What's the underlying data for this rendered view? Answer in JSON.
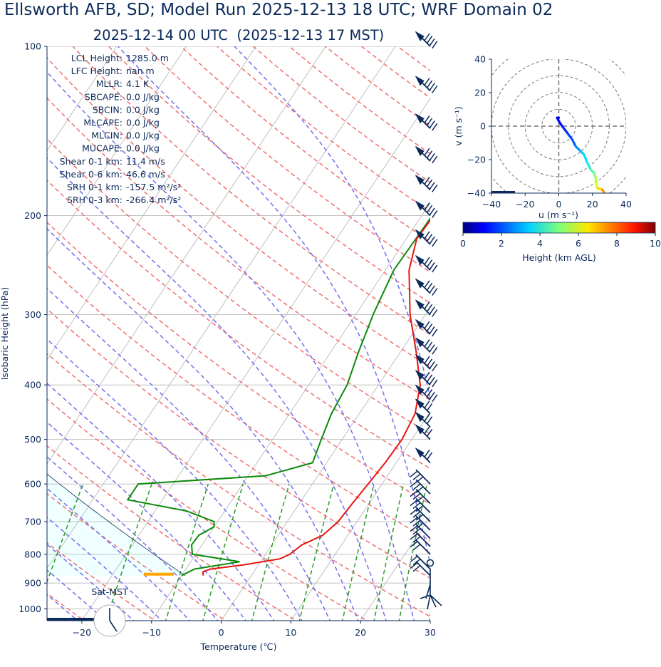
{
  "header": {
    "title": "Ellsworth AFB, SD; Model Run 2025-12-13 18 UTC; WRF Domain 02",
    "subtitle": "2025-12-14 00 UTC  (2025-12-13 17 MST)"
  },
  "indices": [
    {
      "label": "LCL Height:",
      "value": "1285.0 m"
    },
    {
      "label": "LFC Height:",
      "value": "nan m"
    },
    {
      "label": "MLLR:",
      "value": "4.1 K"
    },
    {
      "label": "SBCAPE:",
      "value": "0.0 J/kg"
    },
    {
      "label": "SBCIN:",
      "value": "0.0 J/kg"
    },
    {
      "label": "MLCAPE:",
      "value": "0.0 J/kg"
    },
    {
      "label": "MLCIN:",
      "value": "0.0 J/kg"
    },
    {
      "label": "MUCAPE:",
      "value": "0.0 J/kg"
    },
    {
      "label": "Shear 0-1 km:",
      "value": "11.4 m/s"
    },
    {
      "label": "Shear 0-6 km:",
      "value": "46.6 m/s"
    },
    {
      "label": "SRH 0-1 km:",
      "value": "-157.5 m²/s²"
    },
    {
      "label": "SRH 0-3 km:",
      "value": "-266.4 m²/s²"
    }
  ],
  "clock_label": "Sat-MST",
  "colors": {
    "temperature": "#e8150f",
    "dewpoint": "#0a8a0a",
    "dry_adiabat": "#f07070",
    "moist_adiabat": "#7070f0",
    "mixing_ratio": "#2a9a2a",
    "isotherm": "#b8b8b8",
    "cape_fill": "#f0ffff",
    "barb": "#0b2a5a",
    "lcl_marker": "#ffa500"
  },
  "chart_data": [
    {
      "type": "line",
      "name": "skew-t",
      "xlabel": "Temperature (℃)",
      "ylabel": "Isobaric Height (hPa)",
      "xlim": [
        -25,
        30
      ],
      "ylim": [
        1050,
        100
      ],
      "y_log_scale": true,
      "skew": true,
      "x_ticks": [
        -20,
        -10,
        0,
        10,
        20,
        30
      ],
      "y_ticks": [
        100,
        200,
        300,
        400,
        500,
        600,
        700,
        800,
        900,
        1000
      ],
      "series": [
        {
          "key": "temperature",
          "points": [
            [
              873,
              -6.9
            ],
            [
              860,
              -7.3
            ],
            [
              850,
              -6.5
            ],
            [
              835,
              -2.0
            ],
            [
              815,
              2.5
            ],
            [
              800,
              3.5
            ],
            [
              770,
              4.3
            ],
            [
              740,
              6.4
            ],
            [
              700,
              7.3
            ],
            [
              650,
              7.6
            ],
            [
              600,
              8.0
            ],
            [
              550,
              8.4
            ],
            [
              500,
              8.6
            ],
            [
              450,
              8.0
            ],
            [
              400,
              6.0
            ],
            [
              350,
              2.3
            ],
            [
              300,
              -2.2
            ],
            [
              250,
              -6.6
            ],
            [
              220,
              -8.5
            ],
            [
              190,
              -8.2
            ],
            [
              170,
              -4.0
            ],
            [
              140,
              2.5
            ],
            [
              100,
              12.5
            ]
          ]
        },
        {
          "key": "dewpoint",
          "points": [
            [
              873,
              -10.0
            ],
            [
              850,
              -8.8
            ],
            [
              825,
              -3.0
            ],
            [
              800,
              -10.5
            ],
            [
              770,
              -11.5
            ],
            [
              740,
              -11.4
            ],
            [
              715,
              -10.0
            ],
            [
              700,
              -10.5
            ],
            [
              670,
              -15.5
            ],
            [
              640,
              -25.0
            ],
            [
              600,
              -25.0
            ],
            [
              580,
              -7.5
            ],
            [
              550,
              -2.0
            ],
            [
              500,
              -3.0
            ],
            [
              450,
              -4.0
            ],
            [
              400,
              -4.5
            ],
            [
              350,
              -6.0
            ],
            [
              300,
              -7.5
            ],
            [
              250,
              -8.8
            ],
            [
              200,
              -8.5
            ],
            [
              150,
              -7.5
            ],
            [
              125,
              -7.0
            ],
            [
              100,
              -3.0
            ]
          ]
        }
      ],
      "lcl_hpa": 868,
      "wind_barbs_hpa": [
        100,
        120,
        140,
        160,
        180,
        200,
        225,
        250,
        275,
        300,
        325,
        350,
        375,
        400,
        425,
        450,
        475,
        500,
        550,
        600,
        625,
        650,
        675,
        700,
        725,
        750,
        775,
        800,
        850,
        873
      ],
      "legend": "none"
    },
    {
      "type": "line",
      "name": "hodograph",
      "xlabel": "u (m s⁻¹)",
      "ylabel": "v (m s⁻¹)",
      "xlim": [
        -40,
        40
      ],
      "ylim": [
        -40,
        40
      ],
      "x_ticks": [
        -40,
        -20,
        0,
        20,
        40
      ],
      "y_ticks": [
        -40,
        -20,
        0,
        20,
        40
      ],
      "points": [
        [
          0,
          5
        ],
        [
          -1,
          5
        ],
        [
          0,
          3
        ],
        [
          2,
          0
        ],
        [
          5,
          -4
        ],
        [
          8,
          -8
        ],
        [
          10,
          -12
        ],
        [
          13,
          -15
        ],
        [
          15,
          -17
        ],
        [
          17,
          -22
        ],
        [
          19,
          -26
        ],
        [
          21,
          -28
        ],
        [
          22,
          -31
        ],
        [
          22,
          -34
        ],
        [
          23,
          -37
        ],
        [
          26,
          -38
        ],
        [
          27,
          -40
        ]
      ],
      "colorbar": {
        "label": "Height (km AGL)",
        "range": [
          0,
          10
        ],
        "ticks": [
          0,
          2,
          4,
          6,
          8,
          10
        ]
      }
    }
  ]
}
